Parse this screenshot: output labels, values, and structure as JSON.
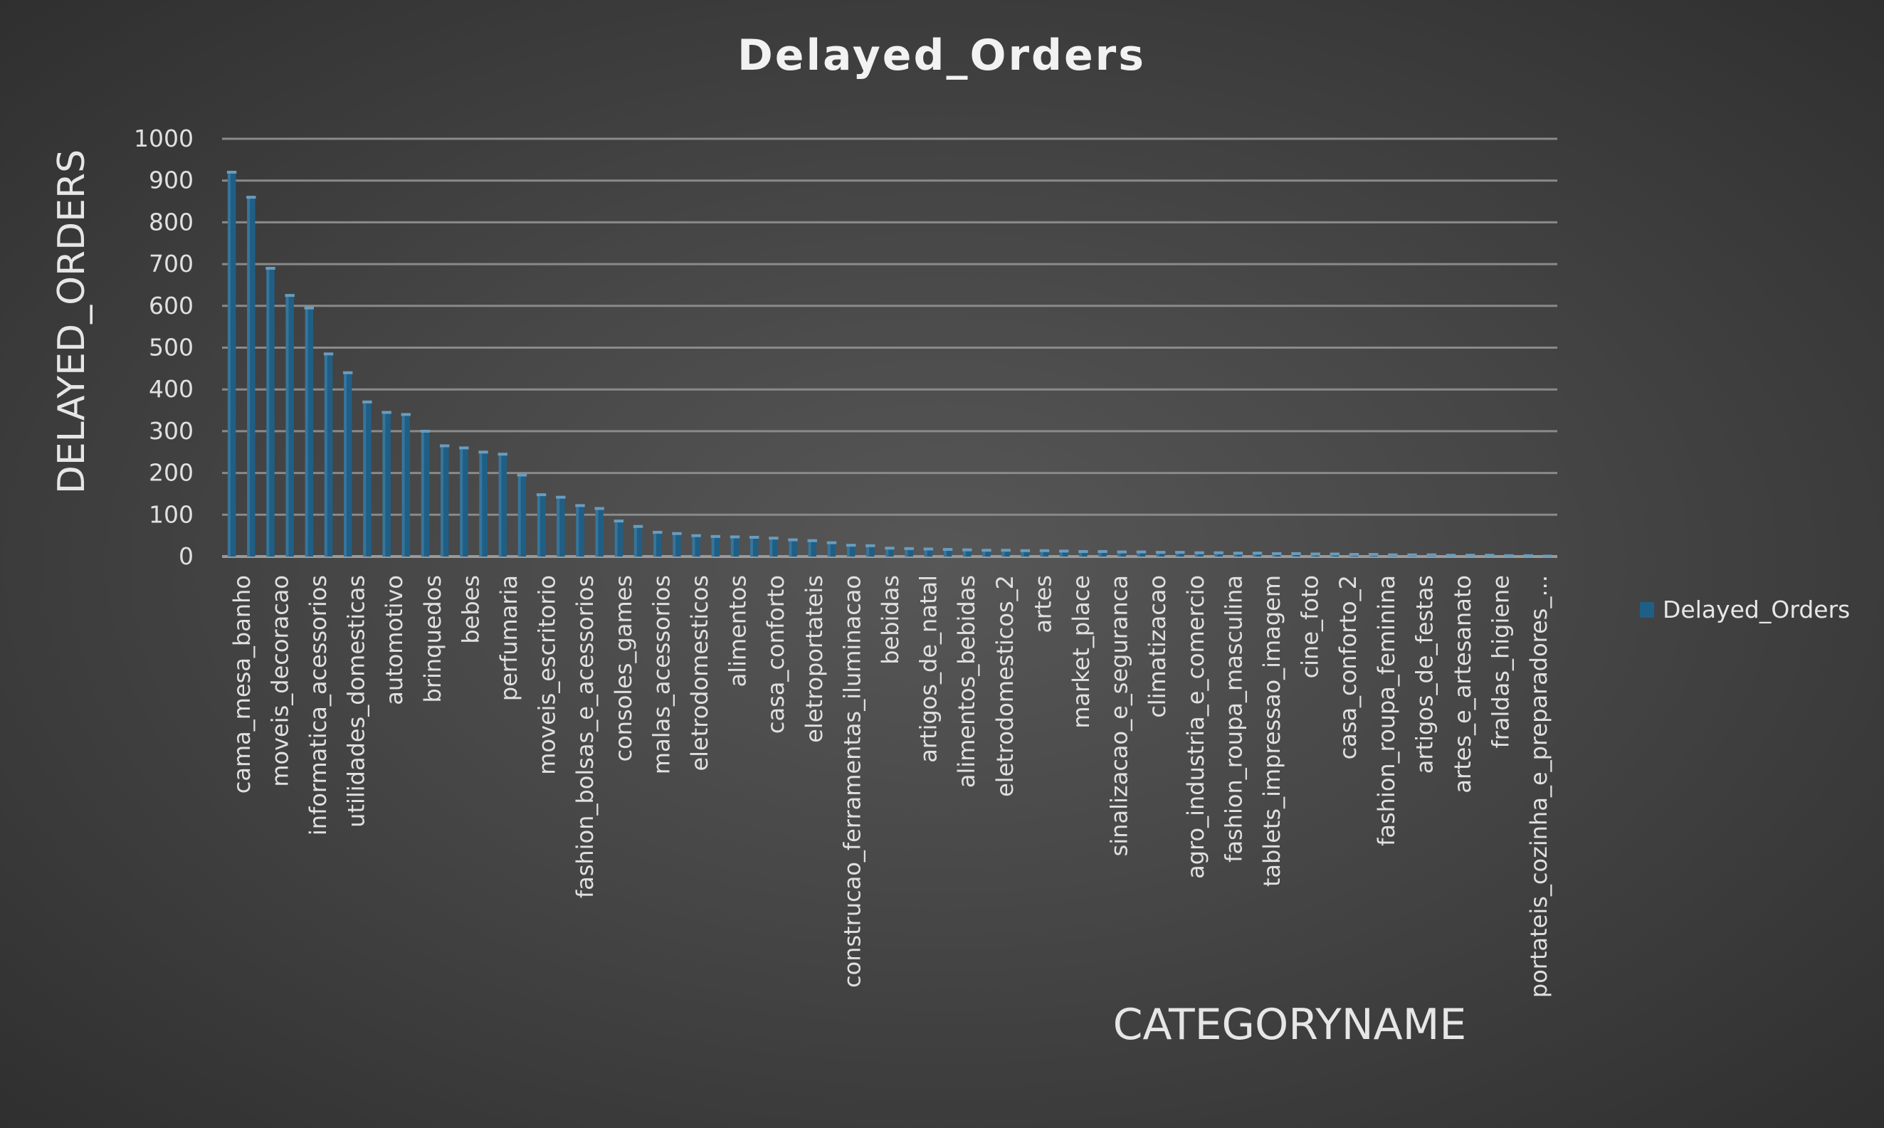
{
  "chart_data": {
    "type": "bar",
    "title": "Delayed_Orders",
    "xlabel": "CATEGORYNAME",
    "ylabel": "DELAYED_ORDERS",
    "ylim": [
      0,
      1000
    ],
    "yticks": [
      "0",
      "100",
      "200",
      "300",
      "400",
      "500",
      "600",
      "700",
      "800",
      "900",
      "1000"
    ],
    "grid": true,
    "legend_position": "right",
    "bar_color": "#1f5f86",
    "bar_highlight_color": "#4a86ad",
    "tick_labels": [
      "cama_mesa_banho",
      "moveis_decoracao",
      "informatica_acessorios",
      "utilidades_domesticas",
      "automotivo",
      "brinquedos",
      "bebes",
      "perfumaria",
      "moveis_escritorio",
      "fashion_bolsas_e_acessorios",
      "consoles_games",
      "malas_acessorios",
      "eletrodomesticos",
      "alimentos",
      "casa_conforto",
      "eletroportateis",
      "construcao_ferramentas_iluminacao",
      "bebidas",
      "artigos_de_natal",
      "alimentos_bebidas",
      "eletrodomesticos_2",
      "artes",
      "market_place",
      "sinalizacao_e_seguranca",
      "climatizacao",
      "agro_industria_e_comercio",
      "fashion_roupa_masculina",
      "tablets_impressao_imagem",
      "cine_foto",
      "casa_conforto_2",
      "fashion_roupa_feminina",
      "artigos_de_festas",
      "artes_e_artesanato",
      "fraldas_higiene",
      "portateis_cozinha_e_preparadores_..."
    ],
    "series": [
      {
        "name": "Delayed_Orders",
        "values": [
          920,
          860,
          690,
          625,
          595,
          485,
          440,
          370,
          345,
          340,
          300,
          265,
          260,
          250,
          245,
          195,
          148,
          142,
          122,
          115,
          85,
          72,
          58,
          55,
          50,
          48,
          47,
          46,
          44,
          40,
          38,
          33,
          27,
          26,
          20,
          19,
          18,
          17,
          16,
          15,
          15,
          14,
          14,
          13,
          12,
          12,
          11,
          11,
          10,
          10,
          9,
          9,
          8,
          8,
          7,
          7,
          6,
          6,
          5,
          5,
          4,
          4,
          4,
          3,
          3,
          3,
          2,
          2,
          1
        ]
      }
    ]
  }
}
